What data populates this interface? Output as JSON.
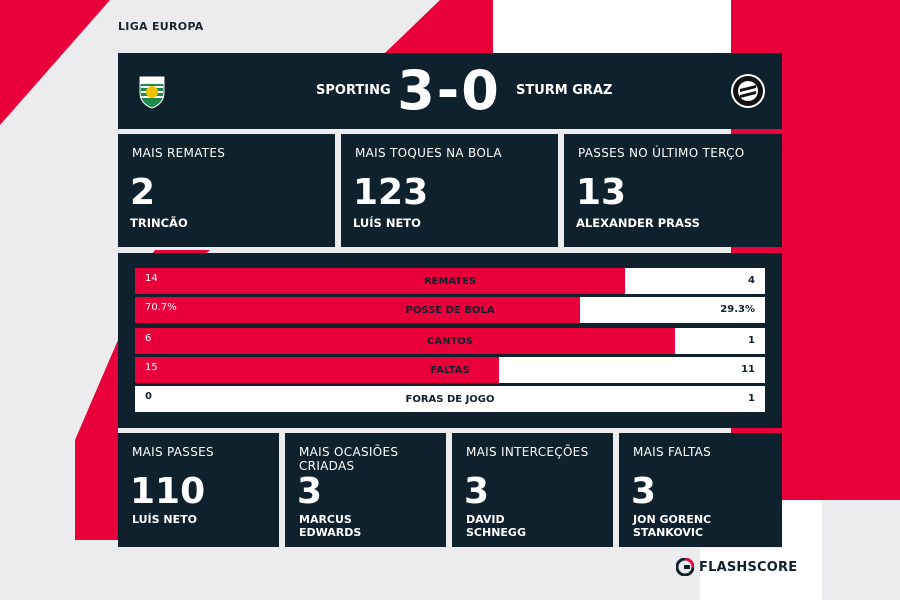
{
  "league": "LIGA EUROPA",
  "match": {
    "home_team": "SPORTING",
    "away_team": "STURM GRAZ",
    "score": "3-0"
  },
  "top_cards": [
    {
      "title": "MAIS REMATES",
      "value": "2",
      "player": "TRINCÃO"
    },
    {
      "title": "MAIS TOQUES NA BOLA",
      "value": "123",
      "player": "LUÍS NETO"
    },
    {
      "title": "PASSES NO ÚLTIMO TERÇO",
      "value": "13",
      "player": "ALEXANDER PRASS"
    }
  ],
  "stats": [
    {
      "label": "REMATES",
      "home": "14",
      "away": "4",
      "home_share": 0.778
    },
    {
      "label": "POSSE DE BOLA",
      "home": "70.7%",
      "away": "29.3%",
      "home_share": 0.707
    },
    {
      "label": "CANTOS",
      "home": "6",
      "away": "1",
      "home_share": 0.857
    },
    {
      "label": "FALTAS",
      "home": "15",
      "away": "11",
      "home_share": 0.577
    },
    {
      "label": "FORAS DE JOGO",
      "home": "0",
      "away": "1",
      "home_share": 0.0
    }
  ],
  "bottom_cards": [
    {
      "title": "MAIS PASSES",
      "value": "110",
      "player": "LUÍS NETO"
    },
    {
      "title": "MAIS OCASIÕES CRIADAS",
      "value": "3",
      "player": "MARCUS EDWARDS"
    },
    {
      "title": "MAIS INTERCEÇÕES",
      "value": "3",
      "player": "DAVID SCHNEGG"
    },
    {
      "title": "MAIS FALTAS",
      "value": "3",
      "player": "JON GORENC STANKOVIC"
    }
  ],
  "brand": "FLASHSCORE",
  "colors": {
    "accent": "#e9003b",
    "panel": "#0f212c",
    "background": "#ececee"
  },
  "icons": {
    "home_crest": "sporting-crest-icon",
    "away_crest": "sturm-graz-crest-icon",
    "brand_logo": "flashscore-logo-icon"
  }
}
